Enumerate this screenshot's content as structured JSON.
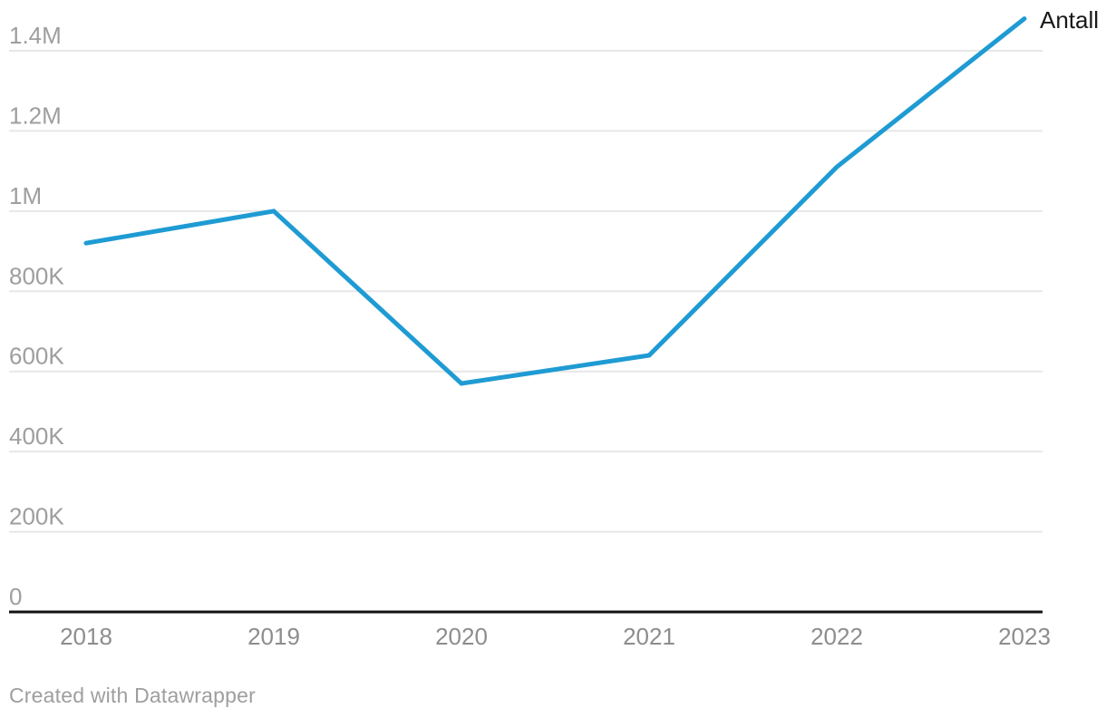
{
  "chart_data": {
    "type": "line",
    "title": "",
    "x": [
      "2018",
      "2019",
      "2020",
      "2021",
      "2022",
      "2023"
    ],
    "series": [
      {
        "name": "Antall",
        "values": [
          920000,
          1000000,
          570000,
          640000,
          1110000,
          1480000
        ],
        "color": "#1f9bd3"
      }
    ],
    "ylim": [
      0,
      1480000
    ],
    "yticks": [
      0,
      200000,
      400000,
      600000,
      800000,
      1000000,
      1200000,
      1400000
    ],
    "ytick_labels": [
      "0",
      "200K",
      "400K",
      "600K",
      "800K",
      "1M",
      "1.2M",
      "1.4M"
    ],
    "xlabel": "",
    "ylabel": "",
    "grid": "horizontal",
    "legend_position": "end-of-line"
  },
  "footer": {
    "attribution": "Created with Datawrapper"
  },
  "colors": {
    "line": "#1f9bd3",
    "grid": "#e7e7e7",
    "axis": "#121212",
    "y_tick_label": "#9e9e9e",
    "x_tick_label": "#8d8d8d",
    "series_label": "#191919",
    "background": "#ffffff"
  }
}
